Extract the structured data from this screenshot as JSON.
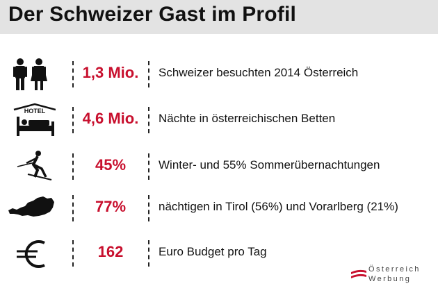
{
  "title": "Der Schweizer Gast im Profil",
  "colors": {
    "accent": "#c8102e",
    "title_bar": "#e3e3e3",
    "text": "#111111"
  },
  "rows": [
    {
      "icon": "people-icon",
      "value": "1,3 Mio.",
      "text": "Schweizer besuchten 2014 Österreich"
    },
    {
      "icon": "hotel-bed-icon",
      "icon_label": "HOTEL",
      "value": "4,6 Mio.",
      "text": "Nächte in österreichischen Betten"
    },
    {
      "icon": "skier-icon",
      "value": "45%",
      "text": "Winter- und 55% Sommerübernachtungen"
    },
    {
      "icon": "austria-map-icon",
      "value": "77%",
      "text": "nächtigen in Tirol (56%) und Vorarlberg (21%)"
    },
    {
      "icon": "euro-icon",
      "value": "162",
      "text": "Euro Budget pro Tag"
    }
  ],
  "logo": {
    "line1": "Österreich",
    "line2": "Werbung"
  }
}
